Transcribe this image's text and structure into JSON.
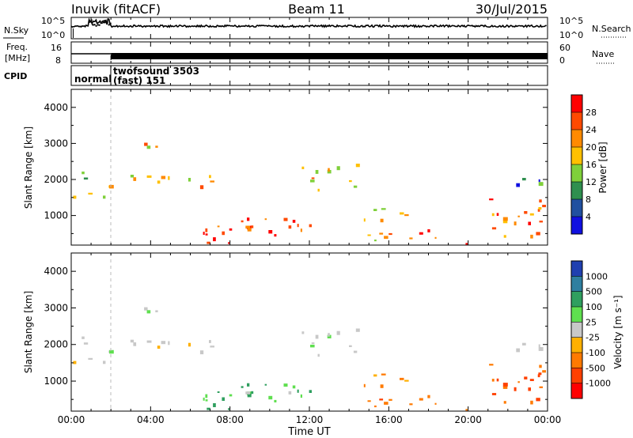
{
  "header": {
    "station": "Inuvik (fitACF)",
    "beam": "Beam 11",
    "date": "30/Jul/2015"
  },
  "top_panels": {
    "noise_label": "N.Sky",
    "noise_left_ticks": [
      "10^5",
      "10^0"
    ],
    "noise_right_ticks": [
      "10^5",
      "10^0"
    ],
    "noise_right_label": "N.Search",
    "freq_label_1": "Freq.",
    "freq_label_2": "[MHz]",
    "freq_left_ticks": [
      "16",
      "8"
    ],
    "freq_right_ticks": [
      "60",
      "0"
    ],
    "freq_right_label": "Nave",
    "cpid_label": "CPID",
    "cpid_mode1": "normal",
    "cpid_mode2_line1": "twofsound 3503",
    "cpid_mode2_line2": "(fast) 151"
  },
  "power_panel": {
    "ylabel": "Slant Range [km]",
    "colorbar_label": "Power [dB]",
    "colorbar_ticks": [
      "28",
      "24",
      "20",
      "16",
      "12",
      "8",
      "4"
    ],
    "colorbar_colors": [
      "#ff0000",
      "#ff4a00",
      "#ff8a00",
      "#ffc000",
      "#7fd03a",
      "#2f8f4f",
      "#2050a0",
      "#1010e0"
    ],
    "y_ticks": [
      "4000",
      "3000",
      "2000",
      "1000"
    ]
  },
  "velocity_panel": {
    "ylabel": "Slant Range [km]",
    "colorbar_label": "Velocity [m s⁻¹]",
    "colorbar_ticks": [
      "1000",
      "500",
      "100",
      "25",
      "-25",
      "-100",
      "-500",
      "-1000"
    ],
    "colorbar_colors": [
      "#2040b0",
      "#2f7fa0",
      "#2f9f5f",
      "#5fdf4f",
      "#c8c8c8",
      "#ffb000",
      "#ff7a00",
      "#ff4000",
      "#ff0000"
    ],
    "y_ticks": [
      "4000",
      "3000",
      "2000",
      "1000"
    ]
  },
  "xaxis": {
    "label": "Time UT",
    "ticks": [
      "00:00",
      "04:00",
      "08:00",
      "12:00",
      "16:00",
      "20:00",
      "00:00"
    ]
  },
  "chart_data": [
    {
      "type": "heatmap",
      "quantity": "Power [dB]",
      "xlabel": "Time UT",
      "ylabel": "Slant Range [km]",
      "xlim": [
        "00:00",
        "24:00"
      ],
      "ylim": [
        180,
        4500
      ],
      "zlim": [
        0,
        30
      ],
      "regions": [
        {
          "t": [
            0.0,
            2.0
          ],
          "r": [
            1400,
            2200
          ],
          "power": 16
        },
        {
          "t": [
            2.5,
            8.0
          ],
          "r": [
            1700,
            2100
          ],
          "power": 20
        },
        {
          "t": [
            3.5,
            5.0
          ],
          "r": [
            2800,
            3300
          ],
          "power": 20
        },
        {
          "t": [
            5.5,
            12.0
          ],
          "r": [
            200,
            1000
          ],
          "power": 28
        },
        {
          "t": [
            11.5,
            15.0
          ],
          "r": [
            1700,
            2400
          ],
          "power": 20
        },
        {
          "t": [
            14.5,
            17.0
          ],
          "r": [
            300,
            1300
          ],
          "power": 20
        },
        {
          "t": [
            17.0,
            20.0
          ],
          "r": [
            200,
            600
          ],
          "power": 28
        },
        {
          "t": [
            20.5,
            24.0
          ],
          "r": [
            300,
            1500
          ],
          "power": 24
        },
        {
          "t": [
            22.0,
            24.0
          ],
          "r": [
            1800,
            2200
          ],
          "power": 8
        }
      ]
    },
    {
      "type": "heatmap",
      "quantity": "Velocity [m s⁻¹]",
      "xlabel": "Time UT",
      "ylabel": "Slant Range [km]",
      "xlim": [
        "00:00",
        "24:00"
      ],
      "ylim": [
        180,
        4500
      ],
      "zlim": [
        -1000,
        1000
      ],
      "regions": [
        {
          "t": [
            0.0,
            2.0
          ],
          "r": [
            1400,
            2200
          ],
          "velocity": 0
        },
        {
          "t": [
            2.5,
            8.0
          ],
          "r": [
            1700,
            2100
          ],
          "velocity": 0
        },
        {
          "t": [
            3.5,
            5.0
          ],
          "r": [
            2800,
            3300
          ],
          "velocity": 0
        },
        {
          "t": [
            5.5,
            12.0
          ],
          "r": [
            200,
            1000
          ],
          "velocity": 100
        },
        {
          "t": [
            11.5,
            15.0
          ],
          "r": [
            1700,
            2400
          ],
          "velocity": 0
        },
        {
          "t": [
            14.5,
            17.0
          ],
          "r": [
            300,
            1300
          ],
          "velocity": -300
        },
        {
          "t": [
            17.0,
            20.0
          ],
          "r": [
            200,
            600
          ],
          "velocity": -300
        },
        {
          "t": [
            20.5,
            24.0
          ],
          "r": [
            300,
            1500
          ],
          "velocity": -600
        },
        {
          "t": [
            22.0,
            24.0
          ],
          "r": [
            1800,
            2200
          ],
          "velocity": 0
        }
      ]
    }
  ]
}
